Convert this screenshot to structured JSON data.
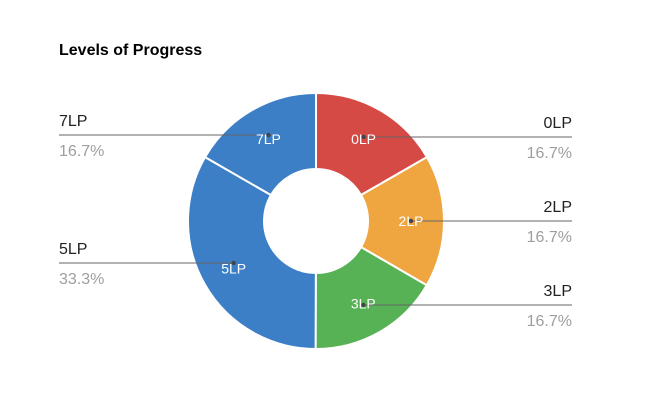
{
  "chart_data": {
    "type": "pie",
    "subtype": "donut",
    "title": "Levels of Progress",
    "slices": [
      {
        "label": "0LP",
        "value": 16.7,
        "percent_label": "16.7%",
        "color": "#d64a46"
      },
      {
        "label": "2LP",
        "value": 16.7,
        "percent_label": "16.7%",
        "color": "#efa540"
      },
      {
        "label": "3LP",
        "value": 16.7,
        "percent_label": "16.7%",
        "color": "#56b254"
      },
      {
        "label": "5LP",
        "value": 33.3,
        "percent_label": "33.3%",
        "color": "#3c7fc6"
      },
      {
        "label": "7LP",
        "value": 16.7,
        "percent_label": "16.7%",
        "color": "#3c7fc6"
      }
    ],
    "legend": "labeled leader lines on both sides"
  }
}
